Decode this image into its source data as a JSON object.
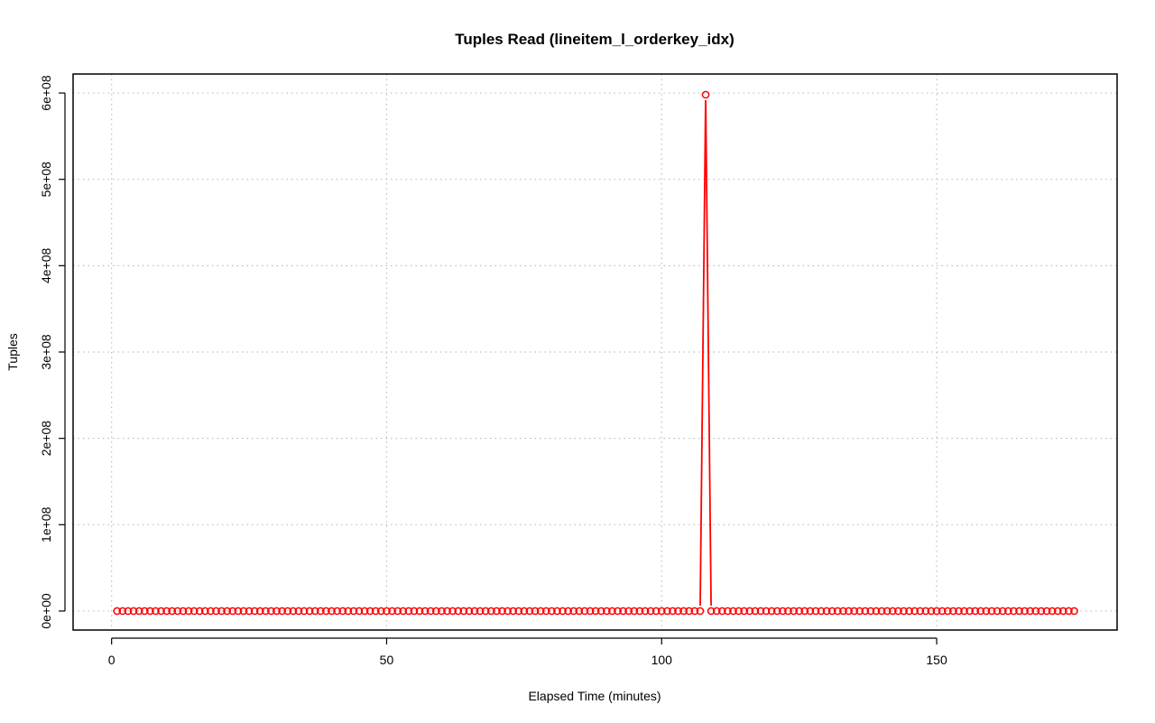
{
  "chart_data": {
    "type": "line",
    "title": "Tuples Read (lineitem_l_orderkey_idx)",
    "xlabel": "Elapsed Time (minutes)",
    "ylabel": "Tuples",
    "xlim": [
      -7.0,
      182.8
    ],
    "ylim": [
      -22000000,
      622000000
    ],
    "x_ticks": [
      0,
      50,
      100,
      150
    ],
    "x_tick_labels": [
      "0",
      "50",
      "100",
      "150"
    ],
    "y_ticks": [
      0,
      100000000,
      200000000,
      300000000,
      400000000,
      500000000,
      600000000
    ],
    "y_tick_labels": [
      "0e+00",
      "1e+08",
      "2e+08",
      "3e+08",
      "4e+08",
      "5e+08",
      "6e+08"
    ],
    "grid": true,
    "series": [
      {
        "color": "#ff0000",
        "x_start": 1,
        "x_end": 175,
        "baseline": 0,
        "peaks": [
          {
            "x": 108,
            "y": 598000000
          }
        ]
      }
    ]
  }
}
